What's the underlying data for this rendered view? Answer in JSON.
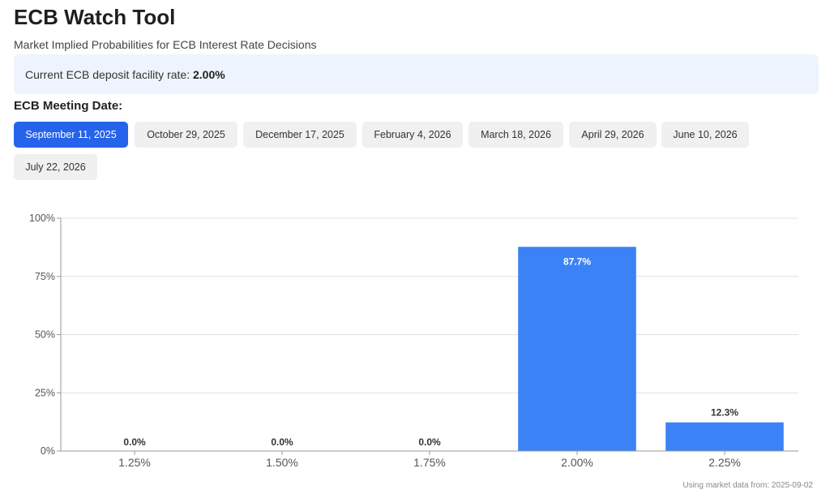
{
  "header": {
    "title": "ECB Watch Tool",
    "subtitle": "Market Implied Probabilities for ECB Interest Rate Decisions"
  },
  "rate": {
    "label": "Current ECB deposit facility rate: ",
    "value": "2.00%"
  },
  "meeting": {
    "label": "ECB Meeting Date:",
    "selected_index": 0,
    "dates": [
      "September 11, 2025",
      "October 29, 2025",
      "December 17, 2025",
      "February 4, 2026",
      "March 18, 2026",
      "April 29, 2026",
      "June 10, 2026",
      "July 22, 2026"
    ]
  },
  "colors": {
    "accent": "#2563eb",
    "bar": "#3b82f6",
    "tab_bg": "#f0f0f0",
    "rate_box_bg": "#eef4fd"
  },
  "chart_data": {
    "type": "bar",
    "categories": [
      "1.25%",
      "1.50%",
      "1.75%",
      "2.00%",
      "2.25%"
    ],
    "values": [
      0.0,
      0.0,
      0.0,
      87.7,
      12.3
    ],
    "labels": [
      "0.0%",
      "0.0%",
      "0.0%",
      "87.7%",
      "12.3%"
    ],
    "ylim": [
      0,
      100
    ],
    "yticks": [
      0,
      25,
      50,
      75,
      100
    ],
    "ytick_labels": [
      "0%",
      "25%",
      "50%",
      "75%",
      "100%"
    ],
    "grid": true
  },
  "footer": {
    "text": "Using market data from: 2025-09-02"
  }
}
